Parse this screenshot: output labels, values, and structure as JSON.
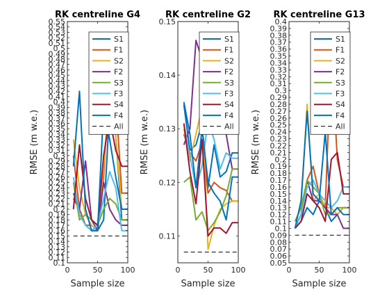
{
  "chart_data": [
    {
      "type": "line",
      "title": "RK centreline G4",
      "xlabel": "Sample size",
      "ylabel": "RMSE (m w.e.)",
      "xlim": [
        0,
        100
      ],
      "ylim": [
        0.1,
        0.55
      ],
      "xticks": [
        "0",
        "50",
        "100"
      ],
      "yticks": [
        "0.1",
        "0.11",
        "0.12",
        "0.13",
        "0.14",
        "0.15",
        "0.16",
        "0.17",
        "0.18",
        "0.19",
        "0.2",
        "0.21",
        "0.22",
        "0.23",
        "0.24",
        "0.25",
        "0.26",
        "0.27",
        "0.28",
        "0.29",
        "0.3",
        "0.31",
        "0.32",
        "0.33",
        "0.34",
        "0.35",
        "0.36",
        "0.37",
        "0.38",
        "0.39",
        "0.4",
        "0.41",
        "0.42",
        "0.43",
        "0.44",
        "0.45",
        "0.46",
        "0.47",
        "0.48",
        "0.49",
        "0.5",
        "0.51",
        "0.52",
        "0.53",
        "0.54",
        "0.55"
      ],
      "x": [
        10,
        20,
        30,
        40,
        50,
        60,
        70,
        80,
        90,
        100
      ],
      "series": [
        {
          "name": "S1",
          "values": [
            0.23,
            0.2,
            0.17,
            0.16,
            0.16,
            0.18,
            0.39,
            0.34,
            0.18,
            0.18
          ]
        },
        {
          "name": "F1",
          "values": [
            0.3,
            0.2,
            0.17,
            0.17,
            0.16,
            0.26,
            0.46,
            0.41,
            0.23,
            0.23
          ]
        },
        {
          "name": "S2",
          "values": [
            0.33,
            0.24,
            0.19,
            0.17,
            0.16,
            0.28,
            0.43,
            0.34,
            0.2,
            0.2
          ]
        },
        {
          "name": "F2",
          "values": [
            0.22,
            0.2,
            0.29,
            0.18,
            0.16,
            0.25,
            0.2,
            0.18,
            0.17,
            0.17
          ]
        },
        {
          "name": "S3",
          "values": [
            0.25,
            0.18,
            0.19,
            0.18,
            0.17,
            0.2,
            0.22,
            0.21,
            0.18,
            0.18
          ]
        },
        {
          "name": "F3",
          "values": [
            0.26,
            0.19,
            0.17,
            0.16,
            0.17,
            0.22,
            0.27,
            0.24,
            0.16,
            0.16
          ]
        },
        {
          "name": "S4",
          "values": [
            0.2,
            0.32,
            0.22,
            0.18,
            0.17,
            0.3,
            0.37,
            0.31,
            0.28,
            0.28
          ]
        },
        {
          "name": "F4",
          "values": [
            0.28,
            0.42,
            0.2,
            0.16,
            0.16,
            0.39,
            0.33,
            0.26,
            0.2,
            0.2
          ]
        },
        {
          "name": "All",
          "values": [
            0.15,
            0.15,
            0.15,
            0.15,
            0.15,
            0.15,
            0.15,
            0.15,
            0.15,
            0.15
          ]
        }
      ],
      "legend": "top-right"
    },
    {
      "type": "line",
      "title": "RK centreline G2",
      "xlabel": "Sample size",
      "ylabel": "RMSE (m w.e.)",
      "xlim": [
        0,
        100
      ],
      "ylim": [
        0.105,
        0.15
      ],
      "xticks": [
        "0",
        "50",
        "100"
      ],
      "yticks": [
        "0.11",
        "0.12",
        "0.13",
        "0.14",
        "0.15"
      ],
      "x": [
        10,
        20,
        30,
        40,
        50,
        60,
        70,
        80,
        90,
        100
      ],
      "series": [
        {
          "name": "S1",
          "values": [
            0.1345,
            0.126,
            0.127,
            0.131,
            0.119,
            0.127,
            0.121,
            0.122,
            0.1255,
            0.1255
          ]
        },
        {
          "name": "F1",
          "values": [
            0.129,
            0.1255,
            0.124,
            0.1275,
            0.118,
            0.12,
            0.119,
            0.1185,
            0.1165,
            0.1165
          ]
        },
        {
          "name": "S2",
          "values": [
            0.13,
            0.124,
            0.129,
            0.134,
            0.1075,
            0.112,
            0.115,
            0.116,
            0.1165,
            0.1165
          ]
        },
        {
          "name": "F2",
          "values": [
            0.127,
            0.13,
            0.1465,
            0.143,
            0.1335,
            0.135,
            0.132,
            0.129,
            0.1225,
            0.1225
          ]
        },
        {
          "name": "S3",
          "values": [
            0.12,
            0.121,
            0.113,
            0.1145,
            0.111,
            0.1125,
            0.1145,
            0.1175,
            0.1225,
            0.1225
          ]
        },
        {
          "name": "F3",
          "values": [
            0.131,
            0.125,
            0.119,
            0.123,
            0.1315,
            0.128,
            0.1225,
            0.1255,
            0.1245,
            0.1245
          ]
        },
        {
          "name": "S4",
          "values": [
            0.131,
            0.122,
            0.116,
            0.128,
            0.11,
            0.1115,
            0.1115,
            0.1105,
            0.1125,
            0.1125
          ]
        },
        {
          "name": "F4",
          "values": [
            0.135,
            0.129,
            0.119,
            0.13,
            0.12,
            0.118,
            0.1165,
            0.113,
            0.121,
            0.121
          ]
        },
        {
          "name": "All",
          "values": [
            0.107,
            0.107,
            0.107,
            0.107,
            0.107,
            0.107,
            0.107,
            0.107,
            0.107,
            0.107
          ]
        }
      ],
      "legend": "top-right"
    },
    {
      "type": "line",
      "title": "RK centreline G13",
      "xlabel": "Sample size",
      "ylabel": "RMSE (m w.e.)",
      "xlim": [
        0,
        100
      ],
      "ylim": [
        0.05,
        0.4
      ],
      "xticks": [
        "0",
        "50",
        "100"
      ],
      "yticks": [
        "0.05",
        "0.06",
        "0.07",
        "0.08",
        "0.09",
        "0.1",
        "0.11",
        "0.12",
        "0.13",
        "0.14",
        "0.15",
        "0.16",
        "0.17",
        "0.18",
        "0.19",
        "0.2",
        "0.21",
        "0.22",
        "0.23",
        "0.24",
        "0.25",
        "0.26",
        "0.27",
        "0.28",
        "0.29",
        "0.3",
        "0.31",
        "0.32",
        "0.33",
        "0.34",
        "0.35",
        "0.36",
        "0.37",
        "0.38",
        "0.39",
        "0.4"
      ],
      "x": [
        10,
        20,
        30,
        40,
        50,
        60,
        70,
        80,
        90,
        100
      ],
      "series": [
        {
          "name": "S1",
          "values": [
            0.1,
            0.11,
            0.13,
            0.12,
            0.14,
            0.13,
            0.11,
            0.12,
            0.13,
            0.13
          ]
        },
        {
          "name": "F1",
          "values": [
            0.1,
            0.12,
            0.17,
            0.19,
            0.15,
            0.13,
            0.36,
            0.2,
            0.16,
            0.16
          ]
        },
        {
          "name": "S2",
          "values": [
            0.11,
            0.13,
            0.28,
            0.14,
            0.15,
            0.13,
            0.13,
            0.12,
            0.13,
            0.13
          ]
        },
        {
          "name": "F2",
          "values": [
            0.1,
            0.12,
            0.17,
            0.14,
            0.14,
            0.13,
            0.12,
            0.12,
            0.1,
            0.1
          ]
        },
        {
          "name": "S3",
          "values": [
            0.11,
            0.13,
            0.17,
            0.16,
            0.15,
            0.12,
            0.12,
            0.13,
            0.13,
            0.13
          ]
        },
        {
          "name": "F3",
          "values": [
            0.1,
            0.12,
            0.16,
            0.17,
            0.15,
            0.14,
            0.13,
            0.14,
            0.16,
            0.16
          ]
        },
        {
          "name": "S4",
          "values": [
            0.1,
            0.11,
            0.15,
            0.14,
            0.13,
            0.11,
            0.2,
            0.21,
            0.15,
            0.15
          ]
        },
        {
          "name": "F4",
          "values": [
            0.1,
            0.14,
            0.27,
            0.15,
            0.14,
            0.24,
            0.12,
            0.13,
            0.12,
            0.12
          ]
        },
        {
          "name": "All",
          "values": [
            0.09,
            0.09,
            0.09,
            0.09,
            0.09,
            0.09,
            0.09,
            0.09,
            0.09,
            0.09
          ]
        }
      ],
      "legend": "top-right"
    }
  ],
  "colors": {
    "S1": "#0072BD",
    "F1": "#D95319",
    "S2": "#EDB120",
    "F2": "#7E2F8E",
    "S3": "#77AC30",
    "F3": "#4DBEEE",
    "S4": "#A2142F",
    "F4": "#0072BD",
    "All": "#000000"
  }
}
